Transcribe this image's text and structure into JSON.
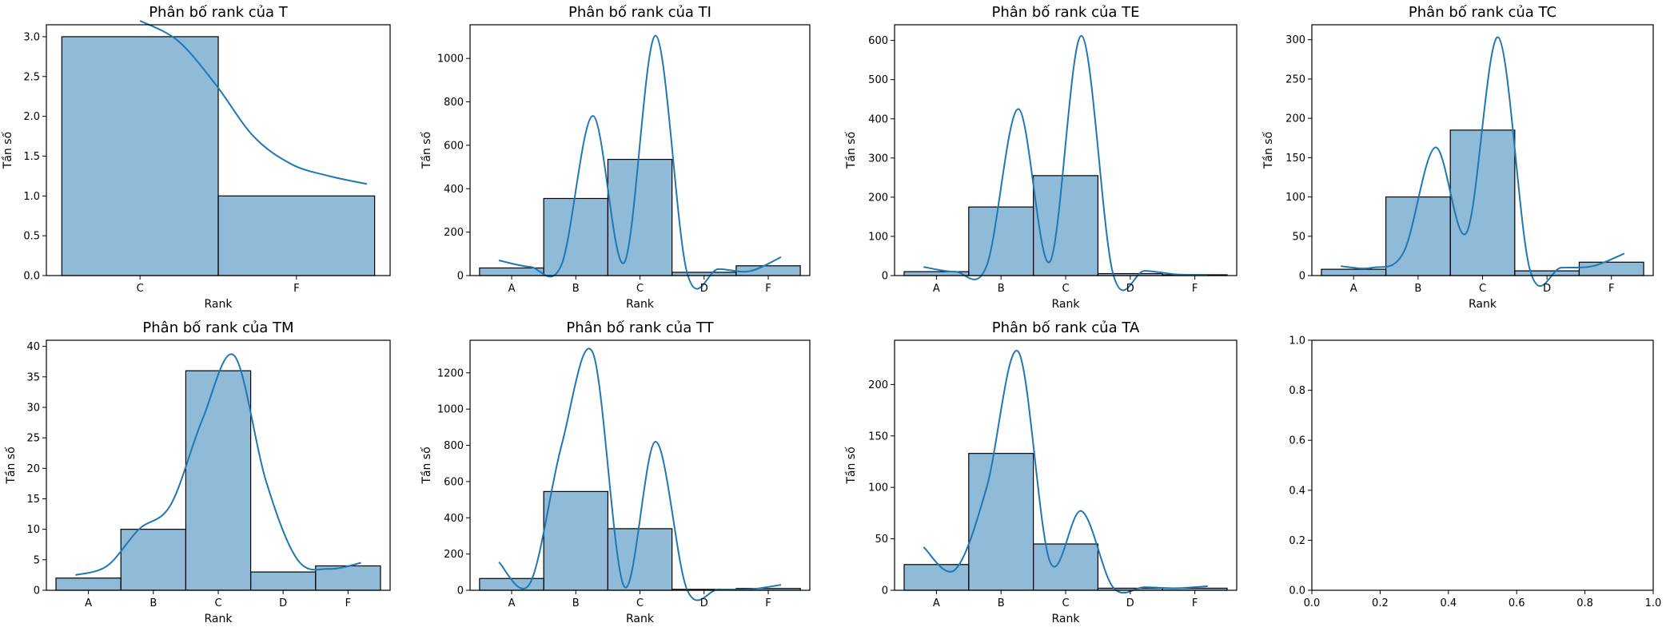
{
  "chart_data": [
    {
      "type": "bar",
      "title": "Phân bố rank của T",
      "xlabel": "Rank",
      "ylabel": "Tần số",
      "categories": [
        "C",
        "F"
      ],
      "values": [
        3,
        1
      ],
      "ylim": [
        0,
        3.15
      ],
      "yticks": [
        "0.0",
        "0.5",
        "1.0",
        "1.5",
        "2.0",
        "2.5",
        "3.0"
      ],
      "kde": [
        3.2,
        2.95,
        2.4,
        1.75,
        1.4,
        1.25,
        1.15
      ],
      "color": "#1f77b4"
    },
    {
      "type": "bar",
      "title": "Phân bố rank của TI",
      "xlabel": "Rank",
      "ylabel": "Tần số",
      "categories": [
        "A",
        "B",
        "C",
        "D",
        "F"
      ],
      "values": [
        35,
        355,
        535,
        15,
        45
      ],
      "ylim": [
        0,
        1155
      ],
      "yticks": [
        "0",
        "200",
        "400",
        "600",
        "800",
        "1000"
      ],
      "kde": [
        70,
        40,
        50,
        735,
        60,
        1105,
        15,
        30,
        20,
        85
      ],
      "color": "#1f77b4"
    },
    {
      "type": "bar",
      "title": "Phân bố rank của TE",
      "xlabel": "Rank",
      "ylabel": "Tần số",
      "categories": [
        "A",
        "B",
        "C",
        "D",
        "F"
      ],
      "values": [
        10,
        175,
        255,
        5,
        2
      ],
      "ylim": [
        0,
        640
      ],
      "yticks": [
        "0",
        "100",
        "200",
        "300",
        "400",
        "500",
        "600"
      ],
      "kde": [
        22,
        10,
        25,
        425,
        35,
        612,
        5,
        12,
        3,
        2
      ],
      "color": "#1f77b4"
    },
    {
      "type": "bar",
      "title": "Phân bố rank của TC",
      "xlabel": "Rank",
      "ylabel": "Tần số",
      "categories": [
        "A",
        "B",
        "C",
        "D",
        "F"
      ],
      "values": [
        8,
        100,
        185,
        6,
        17
      ],
      "ylim": [
        0,
        319
      ],
      "yticks": [
        "0",
        "50",
        "100",
        "150",
        "200",
        "250",
        "300"
      ],
      "kde": [
        12,
        10,
        30,
        163,
        55,
        303,
        8,
        10,
        12,
        28
      ],
      "color": "#1f77b4"
    },
    {
      "type": "bar",
      "title": "Phân bố rank của TM",
      "xlabel": "Rank",
      "ylabel": "Tần số",
      "categories": [
        "A",
        "B",
        "C",
        "D",
        "F"
      ],
      "values": [
        2,
        10,
        36,
        3,
        4
      ],
      "ylim": [
        0,
        41
      ],
      "yticks": [
        "0",
        "5",
        "10",
        "15",
        "20",
        "25",
        "30",
        "35",
        "40"
      ],
      "kde": [
        2.5,
        4,
        10,
        14,
        28,
        38.5,
        18,
        5,
        3.5,
        4.5
      ],
      "color": "#1f77b4"
    },
    {
      "type": "bar",
      "title": "Phân bố rank của TT",
      "xlabel": "Rank",
      "ylabel": "Tần số",
      "categories": [
        "A",
        "B",
        "C",
        "D",
        "F"
      ],
      "values": [
        65,
        545,
        340,
        5,
        10
      ],
      "ylim": [
        0,
        1380
      ],
      "yticks": [
        "0",
        "200",
        "400",
        "600",
        "800",
        "1000",
        "1200"
      ],
      "kde": [
        155,
        40,
        800,
        1310,
        20,
        820,
        5,
        5,
        5,
        30
      ],
      "color": "#1f77b4"
    },
    {
      "type": "bar",
      "title": "Phân bố rank của TA",
      "xlabel": "Rank",
      "ylabel": "Tần số",
      "categories": [
        "A",
        "B",
        "C",
        "D",
        "F"
      ],
      "values": [
        25,
        133,
        45,
        2,
        2
      ],
      "ylim": [
        0,
        243
      ],
      "yticks": [
        "0",
        "50",
        "100",
        "150",
        "200"
      ],
      "kde": [
        42,
        20,
        100,
        232,
        28,
        77,
        3,
        3,
        2,
        4
      ],
      "color": "#1f77b4"
    },
    {
      "type": "bar",
      "title": "",
      "xlabel": "",
      "ylabel": "",
      "categories": [],
      "values": [],
      "ylim": [
        0,
        1
      ],
      "xlim": [
        0,
        1
      ],
      "xticks": [
        "0.0",
        "0.2",
        "0.4",
        "0.6",
        "0.8",
        "1.0"
      ],
      "yticks": [
        "0.0",
        "0.2",
        "0.4",
        "0.6",
        "0.8",
        "1.0"
      ],
      "empty": true
    }
  ]
}
